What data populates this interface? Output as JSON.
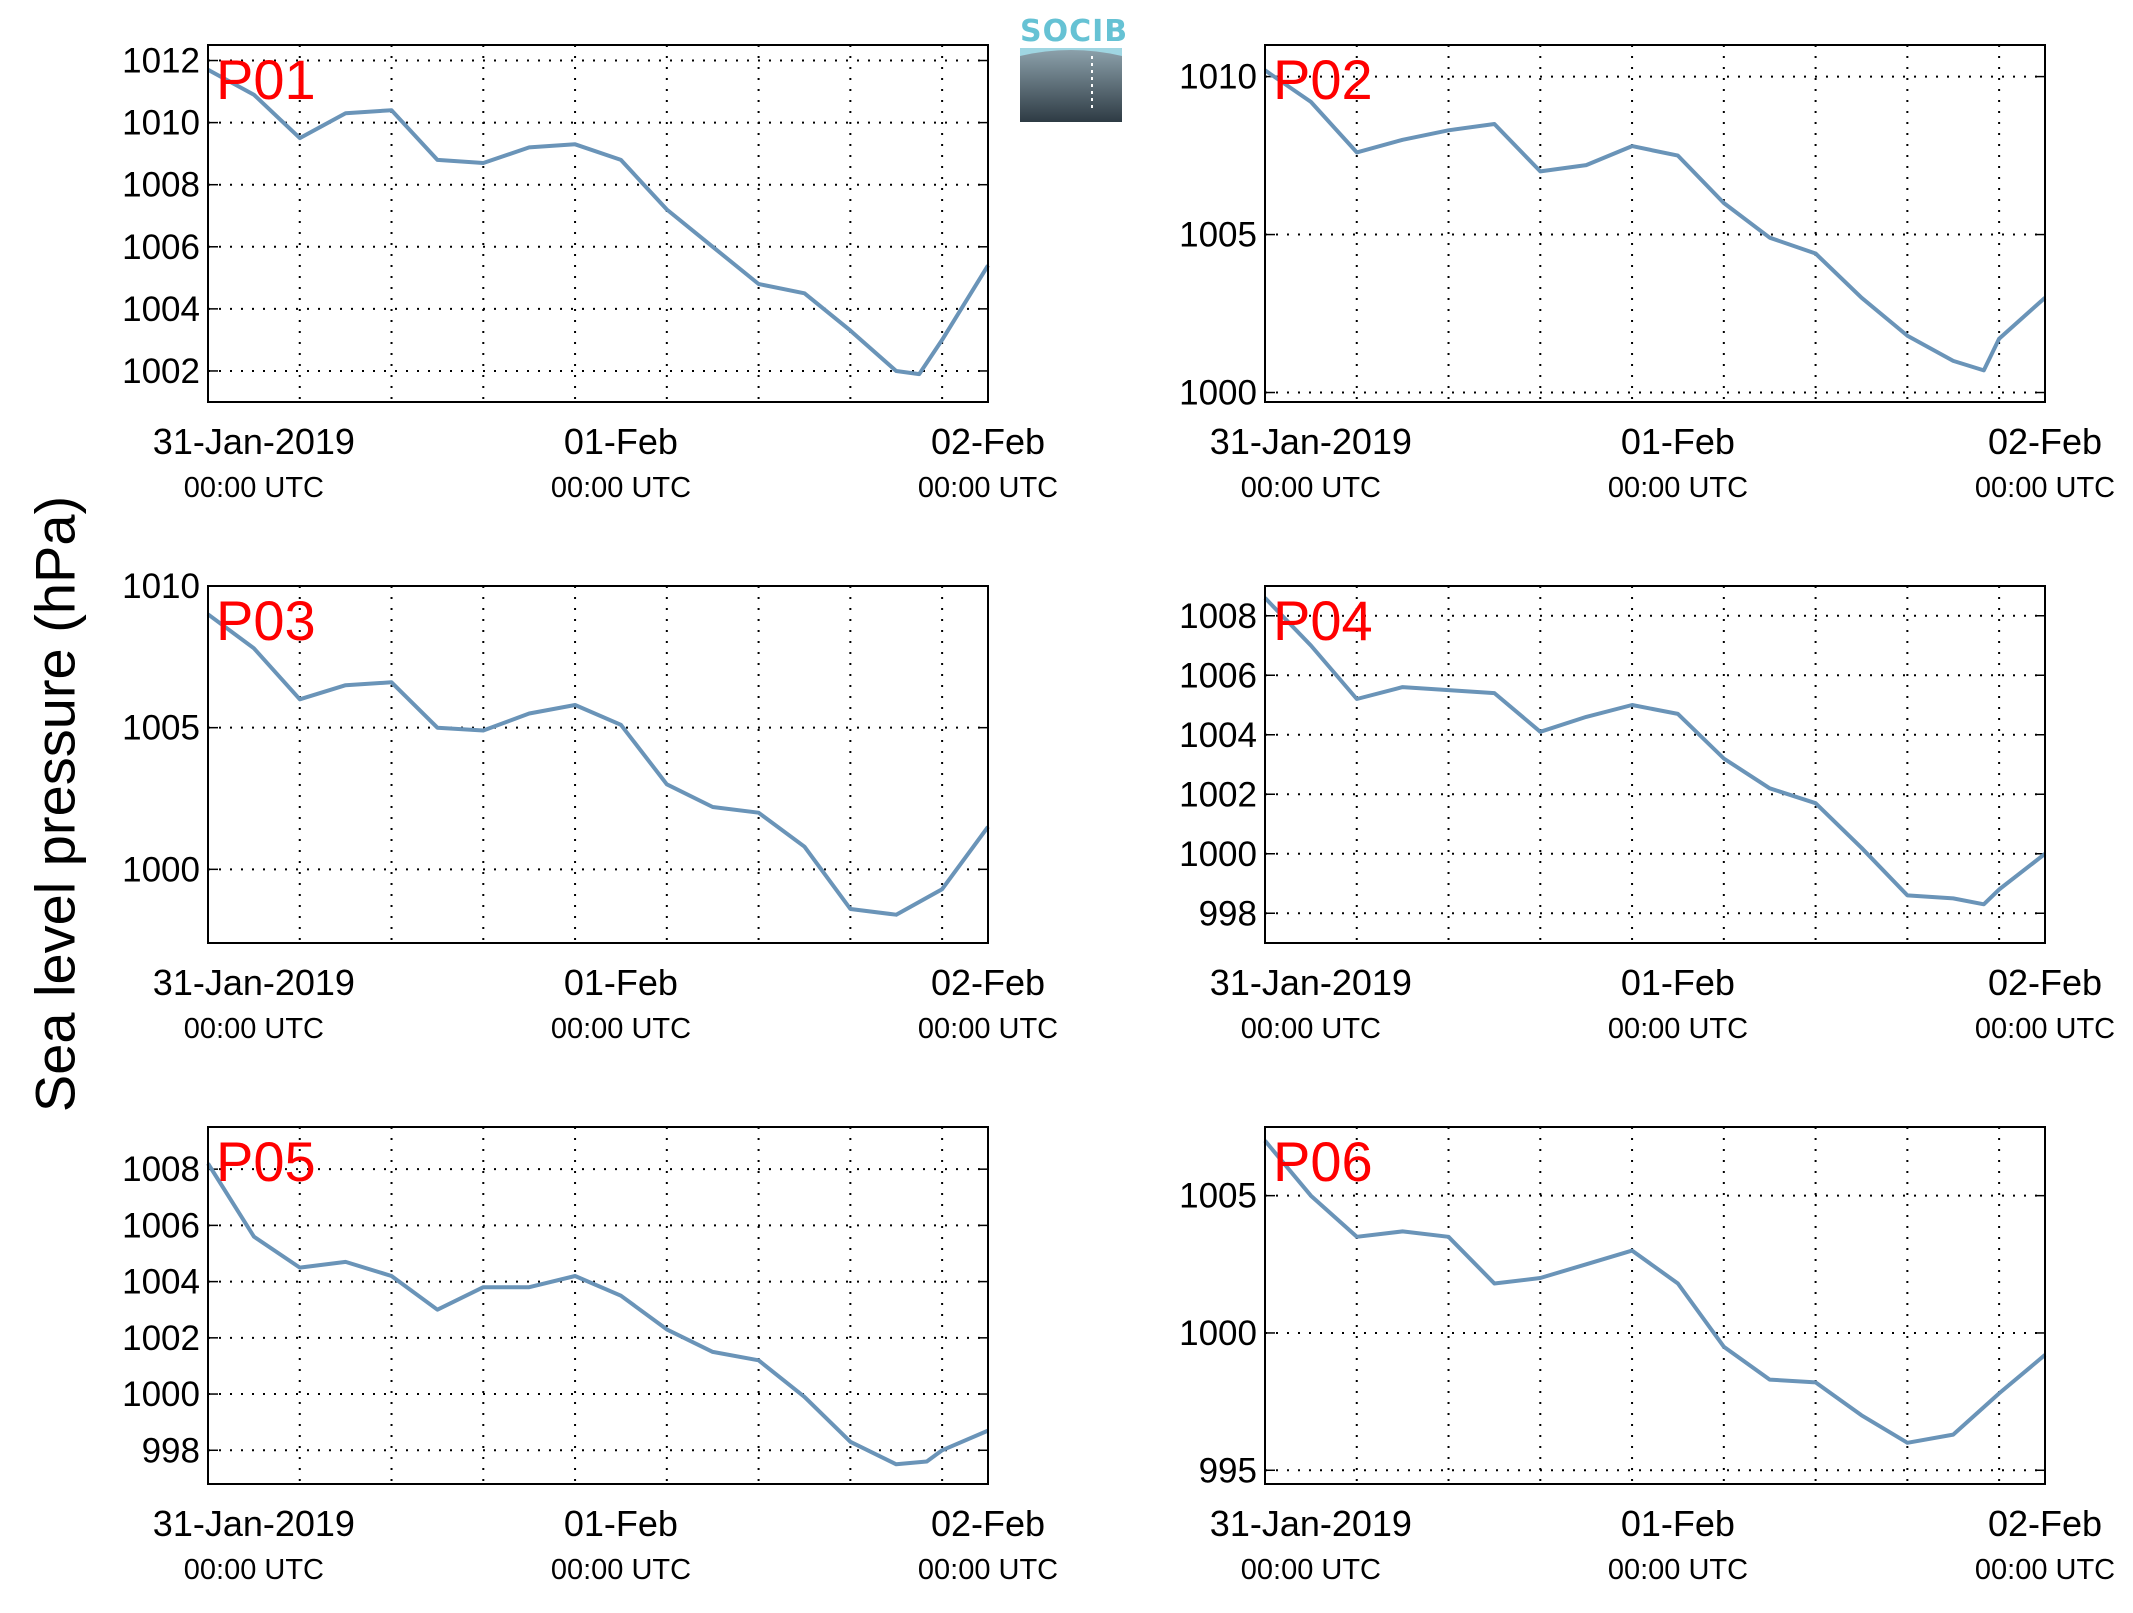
{
  "figure": {
    "ylabel": "Sea level pressure (hPa)",
    "logo_text": "SOCIB"
  },
  "colors": {
    "line": "#6a94b8",
    "panel_label": "#ff0000",
    "grid": "#000000",
    "logo_text": "#66c2d4",
    "logo_top": "#8ea3ad",
    "logo_bottom": "#2e3b44"
  },
  "x_ticks": [
    {
      "value": "2019-01-31T00:00",
      "label": "31-Jan-2019",
      "sublabel": "00:00 UTC"
    },
    {
      "value": "2019-02-01T00:00",
      "label": "01-Feb",
      "sublabel": "00:00 UTC"
    },
    {
      "value": "2019-02-02T00:00",
      "label": "02-Feb",
      "sublabel": "00:00 UTC"
    }
  ],
  "chart_data": [
    {
      "type": "line",
      "panel_label": "P01",
      "xlim": [
        "2019-01-30T21:00",
        "2019-02-02T00:00"
      ],
      "ylim": [
        1001,
        1012.5
      ],
      "yticks": [
        1002,
        1004,
        1006,
        1008,
        1010,
        1012
      ],
      "series": [
        {
          "x": [
            "2019-01-30T21:00",
            "2019-01-31T00:00",
            "2019-01-31T03:00",
            "2019-01-31T06:00",
            "2019-01-31T09:00",
            "2019-01-31T12:00",
            "2019-01-31T15:00",
            "2019-01-31T18:00",
            "2019-01-31T21:00",
            "2019-02-01T00:00",
            "2019-02-01T03:00",
            "2019-02-01T06:00",
            "2019-02-01T09:00",
            "2019-02-01T12:00",
            "2019-02-01T15:00",
            "2019-02-01T18:00",
            "2019-02-01T19:30",
            "2019-02-01T21:00",
            "2019-02-02T00:00"
          ],
          "y": [
            1011.7,
            1010.9,
            1009.5,
            1010.3,
            1010.4,
            1008.8,
            1008.7,
            1009.2,
            1009.3,
            1008.8,
            1007.2,
            1006.0,
            1004.8,
            1004.5,
            1003.3,
            1002.0,
            1001.9,
            1003.0,
            1005.4
          ]
        }
      ]
    },
    {
      "type": "line",
      "panel_label": "P02",
      "xlim": [
        "2019-01-30T21:00",
        "2019-02-02T00:00"
      ],
      "ylim": [
        999.7,
        1011
      ],
      "yticks": [
        1000,
        1005,
        1010
      ],
      "series": [
        {
          "x": [
            "2019-01-30T21:00",
            "2019-01-31T00:00",
            "2019-01-31T03:00",
            "2019-01-31T06:00",
            "2019-01-31T09:00",
            "2019-01-31T12:00",
            "2019-01-31T15:00",
            "2019-01-31T18:00",
            "2019-01-31T21:00",
            "2019-02-01T00:00",
            "2019-02-01T03:00",
            "2019-02-01T06:00",
            "2019-02-01T09:00",
            "2019-02-01T12:00",
            "2019-02-01T15:00",
            "2019-02-01T18:00",
            "2019-02-01T20:00",
            "2019-02-01T21:00",
            "2019-02-02T00:00"
          ],
          "y": [
            1010.2,
            1009.2,
            1007.6,
            1008.0,
            1008.3,
            1008.5,
            1007.0,
            1007.2,
            1007.8,
            1007.5,
            1006.0,
            1004.9,
            1004.4,
            1003.0,
            1001.8,
            1001.0,
            1000.7,
            1001.7,
            1003.0
          ]
        }
      ]
    },
    {
      "type": "line",
      "panel_label": "P03",
      "xlim": [
        "2019-01-30T21:00",
        "2019-02-02T00:00"
      ],
      "ylim": [
        997.4,
        1010
      ],
      "yticks": [
        1000,
        1005,
        1010
      ],
      "series": [
        {
          "x": [
            "2019-01-30T21:00",
            "2019-01-31T00:00",
            "2019-01-31T03:00",
            "2019-01-31T06:00",
            "2019-01-31T09:00",
            "2019-01-31T12:00",
            "2019-01-31T15:00",
            "2019-01-31T18:00",
            "2019-01-31T21:00",
            "2019-02-01T00:00",
            "2019-02-01T03:00",
            "2019-02-01T06:00",
            "2019-02-01T09:00",
            "2019-02-01T12:00",
            "2019-02-01T15:00",
            "2019-02-01T18:00",
            "2019-02-01T21:00",
            "2019-02-02T00:00"
          ],
          "y": [
            1009.0,
            1007.8,
            1006.0,
            1006.5,
            1006.6,
            1005.0,
            1004.9,
            1005.5,
            1005.8,
            1005.1,
            1003.0,
            1002.2,
            1002.0,
            1000.8,
            998.6,
            998.4,
            999.3,
            1001.5
          ]
        }
      ]
    },
    {
      "type": "line",
      "panel_label": "P04",
      "xlim": [
        "2019-01-30T21:00",
        "2019-02-02T00:00"
      ],
      "ylim": [
        997,
        1009
      ],
      "yticks": [
        998,
        1000,
        1002,
        1004,
        1006,
        1008
      ],
      "series": [
        {
          "x": [
            "2019-01-30T21:00",
            "2019-01-31T00:00",
            "2019-01-31T03:00",
            "2019-01-31T06:00",
            "2019-01-31T09:00",
            "2019-01-31T12:00",
            "2019-01-31T15:00",
            "2019-01-31T18:00",
            "2019-01-31T21:00",
            "2019-02-01T00:00",
            "2019-02-01T03:00",
            "2019-02-01T06:00",
            "2019-02-01T09:00",
            "2019-02-01T12:00",
            "2019-02-01T15:00",
            "2019-02-01T18:00",
            "2019-02-01T20:00",
            "2019-02-01T21:00",
            "2019-02-02T00:00"
          ],
          "y": [
            1008.6,
            1007.0,
            1005.2,
            1005.6,
            1005.5,
            1005.4,
            1004.1,
            1004.6,
            1005.0,
            1004.7,
            1003.2,
            1002.2,
            1001.7,
            1000.2,
            998.6,
            998.5,
            998.3,
            998.8,
            1000.0
          ]
        }
      ]
    },
    {
      "type": "line",
      "panel_label": "P05",
      "xlim": [
        "2019-01-30T21:00",
        "2019-02-02T00:00"
      ],
      "ylim": [
        996.8,
        1009.5
      ],
      "yticks": [
        998,
        1000,
        1002,
        1004,
        1006,
        1008
      ],
      "series": [
        {
          "x": [
            "2019-01-30T21:00",
            "2019-01-31T00:00",
            "2019-01-31T03:00",
            "2019-01-31T06:00",
            "2019-01-31T09:00",
            "2019-01-31T12:00",
            "2019-01-31T15:00",
            "2019-01-31T18:00",
            "2019-01-31T21:00",
            "2019-02-01T00:00",
            "2019-02-01T03:00",
            "2019-02-01T06:00",
            "2019-02-01T09:00",
            "2019-02-01T12:00",
            "2019-02-01T15:00",
            "2019-02-01T18:00",
            "2019-02-01T20:00",
            "2019-02-01T21:00",
            "2019-02-02T00:00"
          ],
          "y": [
            1008.2,
            1005.6,
            1004.5,
            1004.7,
            1004.2,
            1003.0,
            1003.8,
            1003.8,
            1004.2,
            1003.5,
            1002.3,
            1001.5,
            1001.2,
            999.9,
            998.3,
            997.5,
            997.6,
            998.0,
            998.7
          ]
        }
      ]
    },
    {
      "type": "line",
      "panel_label": "P06",
      "xlim": [
        "2019-01-30T21:00",
        "2019-02-02T00:00"
      ],
      "ylim": [
        994.5,
        1007.5
      ],
      "yticks": [
        995,
        1000,
        1005
      ],
      "series": [
        {
          "x": [
            "2019-01-30T21:00",
            "2019-01-31T00:00",
            "2019-01-31T03:00",
            "2019-01-31T06:00",
            "2019-01-31T09:00",
            "2019-01-31T12:00",
            "2019-01-31T15:00",
            "2019-01-31T18:00",
            "2019-01-31T21:00",
            "2019-02-01T00:00",
            "2019-02-01T03:00",
            "2019-02-01T06:00",
            "2019-02-01T09:00",
            "2019-02-01T12:00",
            "2019-02-01T15:00",
            "2019-02-01T18:00",
            "2019-02-01T21:00",
            "2019-02-02T00:00"
          ],
          "y": [
            1007.0,
            1005.0,
            1003.5,
            1003.7,
            1003.5,
            1001.8,
            1002.0,
            1002.5,
            1003.0,
            1001.8,
            999.5,
            998.3,
            998.2,
            997.0,
            996.0,
            996.3,
            997.8,
            999.2
          ]
        }
      ]
    }
  ]
}
